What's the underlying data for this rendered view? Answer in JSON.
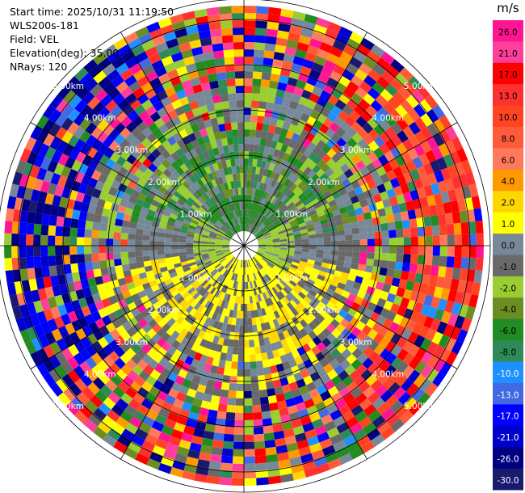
{
  "meta": {
    "start_time": "Start time: 2025/10/31 11:19:50",
    "instrument": "WLS200s-181",
    "field": "Field: VEL",
    "elevation": "Elevation(deg): 35.00",
    "nrays": "NRays: 120"
  },
  "chart_data": {
    "type": "heatmap",
    "projection": "polar-ppi",
    "field": "VEL",
    "nrays": 120,
    "max_range_km": 5.4,
    "range_ring_labels": [
      "1.00km",
      "2.00km",
      "3.00km",
      "4.00km",
      "5.00km"
    ],
    "colorbar": {
      "unit": "m/s",
      "labels": [
        "26.0",
        "21.0",
        "17.0",
        "13.0",
        "10.0",
        "8.0",
        "6.0",
        "4.0",
        "2.0",
        "1.0",
        "0.0",
        "-1.0",
        "-2.0",
        "-4.0",
        "-6.0",
        "-8.0",
        "-10.0",
        "-13.0",
        "-17.0",
        "-21.0",
        "-26.0",
        "-30.0"
      ],
      "colors": [
        "#ff1493",
        "#ff3d9a",
        "#ff0000",
        "#ff3030",
        "#ff4422",
        "#ff5a3a",
        "#ff7a5a",
        "#ff9900",
        "#ffd700",
        "#ffff00",
        "#778899",
        "#696969",
        "#9acd32",
        "#6b8e23",
        "#228b22",
        "#2e8b57",
        "#1e90ff",
        "#4169e1",
        "#0000ff",
        "#0000cd",
        "#000080",
        "#191970"
      ]
    }
  }
}
